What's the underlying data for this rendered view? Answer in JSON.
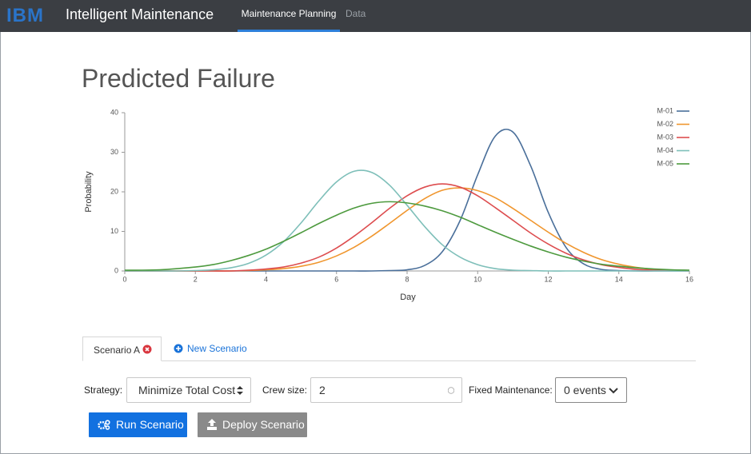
{
  "header": {
    "logo": "IBM",
    "app_name": "Intelligent Maintenance",
    "nav": [
      "Maintenance Planning",
      "Data"
    ]
  },
  "page_title": "Predicted Failure",
  "chart_data": {
    "type": "line",
    "x_label": "Day",
    "y_label": "Probability",
    "x": [
      0,
      0.5,
      1,
      1.5,
      2,
      2.5,
      3,
      3.5,
      4,
      4.5,
      5,
      5.5,
      6,
      6.5,
      7,
      7.5,
      8,
      8.5,
      9,
      9.5,
      10,
      10.5,
      11,
      11.5,
      12,
      12.5,
      13,
      13.5,
      14,
      14.5,
      15,
      15.5,
      16
    ],
    "xlim": [
      0,
      16
    ],
    "xticks": [
      0,
      2,
      4,
      6,
      8,
      10,
      12,
      14,
      16
    ],
    "ylim": [
      0,
      40
    ],
    "yticks": [
      0,
      10,
      20,
      30,
      40
    ],
    "legend": "top-right",
    "series": [
      {
        "name": "M-01",
        "color": "#4a6f9a",
        "values": [
          0,
          0,
          0,
          0,
          0,
          0,
          0,
          0,
          0,
          0,
          0,
          0,
          0,
          0,
          0,
          0.1,
          0.3,
          1.4,
          4.9,
          12.7,
          24.3,
          34.1,
          35.1,
          26.6,
          14.8,
          6.0,
          1.8,
          0.4,
          0.1,
          0,
          0,
          0,
          0
        ]
      },
      {
        "name": "M-02",
        "color": "#f0962e",
        "values": [
          0,
          0,
          0,
          0,
          0,
          0,
          0,
          0.1,
          0.3,
          0.6,
          1.2,
          2.2,
          3.8,
          6,
          8.8,
          12,
          15.3,
          18.3,
          20.4,
          21,
          20.3,
          18.5,
          15.8,
          12.8,
          9.8,
          7,
          4.7,
          2.9,
          1.7,
          0.9,
          0.4,
          0.2,
          0.1
        ]
      },
      {
        "name": "M-03",
        "color": "#dd4d4f",
        "values": [
          0,
          0,
          0,
          0,
          0,
          0,
          0,
          0.2,
          0.5,
          1,
          2,
          3.5,
          5.8,
          8.8,
          12.2,
          15.8,
          19,
          21.2,
          22,
          21.2,
          19,
          16,
          12.8,
          9.6,
          6.8,
          4.5,
          2.8,
          1.6,
          0.9,
          0.4,
          0.2,
          0.1,
          0
        ]
      },
      {
        "name": "M-04",
        "color": "#7ebfb9",
        "values": [
          0,
          0,
          0,
          0,
          0.1,
          0.3,
          0.8,
          1.9,
          4.0,
          7.4,
          12.2,
          17.7,
          22.5,
          25.2,
          24.9,
          21.7,
          16.6,
          11.2,
          6.6,
          3.5,
          1.6,
          0.6,
          0.2,
          0.1,
          0,
          0,
          0,
          0,
          0,
          0,
          0,
          0,
          0
        ]
      },
      {
        "name": "M-05",
        "color": "#4d9a3e",
        "values": [
          0.2,
          0.2,
          0.3,
          0.6,
          1.0,
          1.6,
          2.6,
          3.9,
          5.5,
          7.5,
          9.7,
          12.0,
          14.1,
          15.9,
          17.1,
          17.5,
          17.2,
          16.4,
          15.2,
          13.6,
          11.7,
          9.8,
          8.0,
          6.3,
          4.8,
          3.5,
          2.5,
          1.7,
          1.2,
          0.8,
          0.5,
          0.3,
          0.2
        ]
      }
    ]
  },
  "tabs": [
    "Scenario A",
    "New Scenario"
  ],
  "form": {
    "strategy_label": "Strategy:",
    "strategy_value": "Minimize Total Cost",
    "crew_label": "Crew size:",
    "crew_value": "2",
    "fixed_label": "Fixed Maintenance:",
    "fixed_value": "0 events"
  },
  "buttons": [
    "Run Scenario",
    "Deploy Scenario"
  ]
}
